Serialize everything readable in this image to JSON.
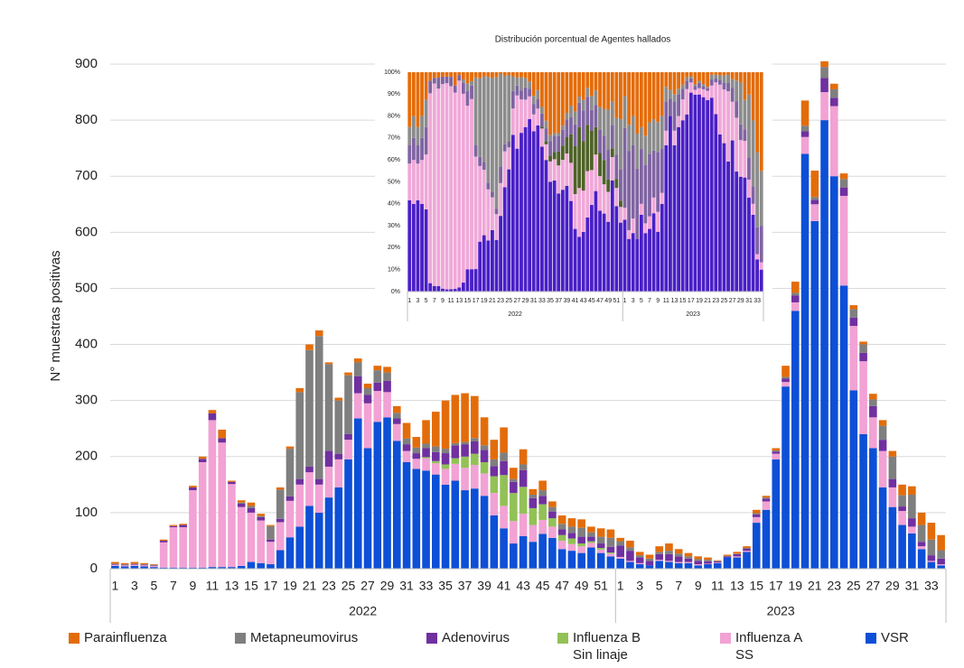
{
  "chart_data": [
    {
      "type": "stacked_bar",
      "y_label": "N° muestras positivas",
      "categories": [
        "1",
        null,
        "3",
        null,
        "5",
        null,
        "7",
        null,
        "9",
        null,
        "11",
        null,
        "13",
        null,
        "15",
        null,
        "17",
        null,
        "19",
        null,
        "21",
        null,
        "23",
        null,
        "25",
        null,
        "27",
        null,
        "29",
        null,
        "31",
        null,
        "33",
        null,
        "35",
        null,
        "37",
        null,
        "39",
        null,
        "41",
        null,
        "43",
        null,
        "45",
        null,
        "47",
        null,
        "49",
        null,
        "51",
        null,
        "1",
        null,
        "3",
        null,
        "5",
        null,
        "7",
        null,
        "9",
        null,
        "11",
        null,
        "13",
        null,
        "15",
        null,
        "17",
        null,
        "19",
        null,
        "21",
        null,
        "23",
        null,
        "25",
        null,
        "27",
        null,
        "29",
        null,
        "31",
        null,
        "33",
        null
      ],
      "groups": [
        "2022",
        "2023"
      ],
      "ylim": [
        0,
        900
      ],
      "yticks": [
        0,
        100,
        200,
        300,
        400,
        500,
        600,
        700,
        800,
        900
      ],
      "grid": true,
      "series": [
        {
          "name": "Parainfluenza",
          "color": "#e36c0a",
          "values": [
            3,
            2,
            3,
            2,
            1,
            2,
            2,
            2,
            3,
            4,
            6,
            15,
            2,
            4,
            6,
            4,
            2,
            4,
            4,
            7,
            10,
            10,
            3,
            5,
            5,
            7,
            8,
            8,
            10,
            12,
            28,
            19,
            42,
            62,
            86,
            86,
            87,
            75,
            50,
            35,
            45,
            20,
            27,
            10,
            17,
            10,
            15,
            15,
            15,
            10,
            15,
            15,
            6,
            12,
            6,
            7,
            10,
            13,
            8,
            6,
            5,
            4,
            1,
            2,
            3,
            3,
            6,
            3,
            4,
            20,
            20,
            45,
            47,
            10,
            10,
            10,
            7,
            5,
            10,
            10,
            10,
            19,
            15,
            22,
            30,
            27
          ]
        },
        {
          "name": "Metapneumovirus",
          "color": "#7f7f7f",
          "values": [
            1,
            1,
            1,
            1,
            1,
            0,
            0,
            0,
            0,
            0,
            0,
            0,
            0,
            2,
            4,
            2,
            24,
            52,
            85,
            155,
            208,
            255,
            155,
            95,
            105,
            25,
            12,
            22,
            15,
            10,
            10,
            10,
            8,
            10,
            8,
            4,
            4,
            6,
            8,
            12,
            15,
            5,
            10,
            6,
            10,
            8,
            10,
            11,
            16,
            8,
            12,
            16,
            8,
            6,
            4,
            4,
            4,
            6,
            5,
            4,
            3,
            3,
            1,
            1,
            1,
            1,
            2,
            2,
            2,
            3,
            5,
            10,
            5,
            20,
            15,
            15,
            15,
            15,
            12,
            25,
            40,
            20,
            42,
            30,
            28,
            15
          ]
        },
        {
          "name": "Adenovirus",
          "color": "#7030a0",
          "values": [
            1,
            1,
            1,
            1,
            1,
            3,
            2,
            4,
            5,
            6,
            12,
            8,
            4,
            6,
            8,
            6,
            4,
            6,
            8,
            10,
            10,
            10,
            28,
            10,
            10,
            30,
            15,
            15,
            20,
            10,
            12,
            10,
            16,
            16,
            20,
            23,
            22,
            22,
            22,
            18,
            25,
            20,
            30,
            18,
            15,
            12,
            10,
            10,
            12,
            8,
            8,
            10,
            20,
            18,
            10,
            8,
            10,
            12,
            10,
            6,
            6,
            4,
            2,
            2,
            4,
            4,
            5,
            5,
            4,
            6,
            12,
            10,
            8,
            25,
            15,
            15,
            15,
            15,
            20,
            20,
            15,
            8,
            15,
            8,
            10,
            10
          ]
        },
        {
          "name": "Influenza B Sin linaje",
          "color": "#92c156",
          "values": [
            0,
            0,
            0,
            0,
            0,
            0,
            0,
            0,
            0,
            0,
            0,
            0,
            0,
            0,
            0,
            0,
            0,
            0,
            0,
            0,
            0,
            0,
            0,
            0,
            0,
            0,
            0,
            0,
            0,
            0,
            0,
            0,
            2,
            4,
            8,
            10,
            20,
            20,
            20,
            30,
            55,
            50,
            48,
            30,
            28,
            15,
            10,
            10,
            5,
            3,
            3,
            2,
            0,
            0,
            0,
            0,
            0,
            0,
            0,
            0,
            0,
            0,
            0,
            0,
            0,
            0,
            0,
            0,
            0,
            0,
            0,
            0,
            0,
            0,
            0,
            0,
            0,
            0,
            0,
            0,
            0,
            0,
            0,
            0,
            0,
            0
          ]
        },
        {
          "name": "Influenza A SS",
          "color": "#f2a2d4",
          "values": [
            2,
            2,
            2,
            2,
            2,
            45,
            72,
            72,
            138,
            188,
            262,
            222,
            148,
            105,
            88,
            76,
            40,
            50,
            65,
            75,
            60,
            50,
            55,
            50,
            35,
            45,
            80,
            55,
            45,
            30,
            20,
            18,
            22,
            20,
            28,
            30,
            40,
            42,
            40,
            40,
            40,
            40,
            40,
            30,
            25,
            20,
            15,
            12,
            12,
            8,
            6,
            5,
            3,
            2,
            2,
            0,
            2,
            2,
            2,
            2,
            2,
            1,
            1,
            0,
            2,
            2,
            10,
            15,
            10,
            8,
            15,
            30,
            30,
            50,
            125,
            160,
            115,
            130,
            55,
            65,
            35,
            25,
            12,
            5,
            2,
            2
          ]
        },
        {
          "name": "VSR",
          "color": "#0d4fd6",
          "values": [
            5,
            4,
            5,
            4,
            3,
            2,
            2,
            2,
            2,
            2,
            3,
            3,
            3,
            5,
            12,
            10,
            8,
            33,
            56,
            75,
            112,
            100,
            127,
            145,
            195,
            268,
            215,
            262,
            270,
            228,
            190,
            178,
            175,
            168,
            150,
            157,
            140,
            143,
            130,
            95,
            72,
            45,
            58,
            48,
            62,
            55,
            35,
            32,
            28,
            38,
            28,
            22,
            18,
            12,
            8,
            6,
            14,
            12,
            10,
            10,
            6,
            8,
            10,
            20,
            20,
            30,
            82,
            105,
            195,
            325,
            460,
            740,
            620,
            800,
            700,
            505,
            318,
            240,
            215,
            145,
            110,
            78,
            63,
            35,
            12,
            6
          ]
        }
      ]
    },
    {
      "type": "stacked_percent",
      "title": "Distribución porcentual de Agentes hallados",
      "ylim": [
        0,
        100
      ],
      "yticks": [
        {
          "value": 0,
          "label": "0%"
        },
        {
          "value": 10,
          "label": "10%"
        },
        {
          "value": 20,
          "label": "20%"
        },
        {
          "value": 30,
          "label": "30%"
        },
        {
          "value": 40,
          "label": "40%"
        },
        {
          "value": 50,
          "label": "50%"
        },
        {
          "value": 60,
          "label": "60%"
        },
        {
          "value": 70,
          "label": "70%"
        },
        {
          "value": 80,
          "label": "80%"
        },
        {
          "value": 90,
          "label": "90%"
        },
        {
          "value": 100,
          "label": "100%"
        }
      ],
      "colors": [
        "#e46c0a",
        "#8c8c8c",
        "#8064a2",
        "#4f6228",
        "#f0a8d8",
        "#4a1fc6"
      ]
    }
  ]
}
